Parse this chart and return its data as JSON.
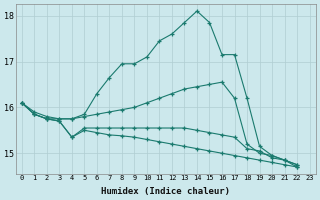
{
  "xlabel": "Humidex (Indice chaleur)",
  "bg_color": "#cce8ec",
  "grid_color": "#b0ced2",
  "line_color": "#1a7a6e",
  "xlim": [
    -0.5,
    23.5
  ],
  "ylim": [
    14.55,
    18.25
  ],
  "yticks": [
    15,
    16,
    17,
    18
  ],
  "xticks": [
    0,
    1,
    2,
    3,
    4,
    5,
    6,
    7,
    8,
    9,
    10,
    11,
    12,
    13,
    14,
    15,
    16,
    17,
    18,
    19,
    20,
    21,
    22,
    23
  ],
  "series": [
    {
      "x": [
        0,
        1,
        2,
        3,
        4,
        5,
        6,
        7,
        8,
        9,
        10,
        11,
        12,
        13,
        14,
        15,
        16,
        17,
        18,
        19,
        20,
        21,
        22
      ],
      "y": [
        16.1,
        15.9,
        15.8,
        15.75,
        15.75,
        15.85,
        16.3,
        16.65,
        16.95,
        16.95,
        17.1,
        17.45,
        17.6,
        17.85,
        18.1,
        17.85,
        17.15,
        17.15,
        16.2,
        15.15,
        14.95,
        14.85,
        14.7
      ]
    },
    {
      "x": [
        0,
        1,
        2,
        3,
        4,
        5,
        6,
        7,
        8,
        9,
        10,
        11,
        12,
        13,
        14,
        15,
        16,
        17,
        18,
        19,
        20,
        21,
        22,
        23
      ],
      "y": [
        16.1,
        15.85,
        15.75,
        15.75,
        15.75,
        15.8,
        15.85,
        15.9,
        15.95,
        16.0,
        16.1,
        16.2,
        16.3,
        16.4,
        16.45,
        16.5,
        16.55,
        16.2,
        15.2,
        15.0,
        14.95,
        14.85,
        14.75,
        null
      ]
    },
    {
      "x": [
        0,
        1,
        2,
        3,
        4,
        5,
        6,
        7,
        8,
        9,
        10,
        11,
        12,
        13,
        14,
        15,
        16,
        17,
        18,
        19,
        20,
        21,
        22,
        23
      ],
      "y": [
        16.1,
        15.85,
        15.75,
        15.7,
        15.35,
        15.55,
        15.55,
        15.55,
        15.55,
        15.55,
        15.55,
        15.55,
        15.55,
        15.55,
        15.5,
        15.45,
        15.4,
        15.35,
        15.1,
        15.05,
        14.9,
        14.85,
        14.75,
        null
      ]
    },
    {
      "x": [
        0,
        1,
        2,
        3,
        4,
        5,
        6,
        7,
        8,
        9,
        10,
        11,
        12,
        13,
        14,
        15,
        16,
        17,
        18,
        19,
        20,
        21,
        22,
        23
      ],
      "y": [
        16.1,
        15.85,
        15.75,
        15.7,
        15.35,
        15.5,
        15.45,
        15.4,
        15.38,
        15.35,
        15.3,
        15.25,
        15.2,
        15.15,
        15.1,
        15.05,
        15.0,
        14.95,
        14.9,
        14.85,
        14.8,
        14.75,
        14.7,
        null
      ]
    }
  ]
}
